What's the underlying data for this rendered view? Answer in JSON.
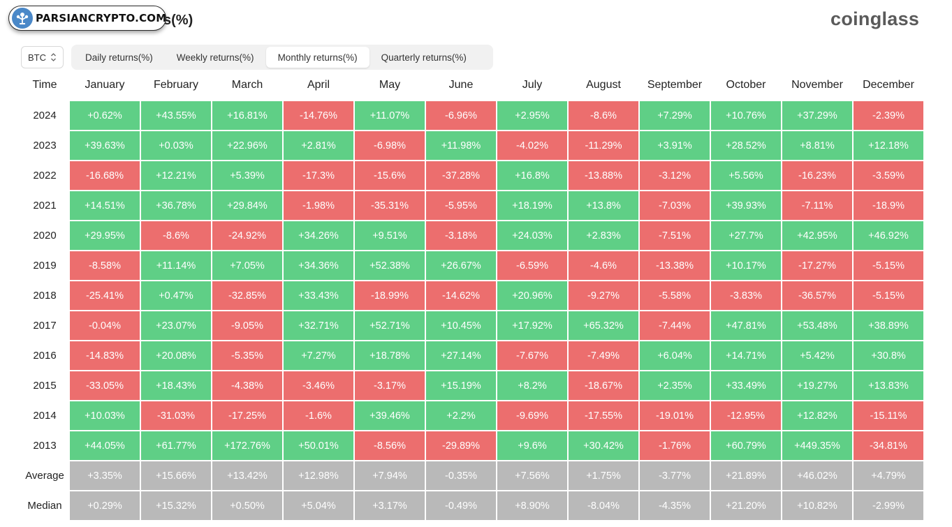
{
  "watermark": {
    "text": "PARSIANCRYPTO.COM",
    "icon": "tree-logo-icon"
  },
  "title_suffix": "s(%)",
  "brand": "coinglass",
  "asset": {
    "selected": "BTC"
  },
  "tabs": [
    {
      "label": "Daily returns(%)",
      "active": false
    },
    {
      "label": "Weekly returns(%)",
      "active": false
    },
    {
      "label": "Monthly returns(%)",
      "active": true
    },
    {
      "label": "Quarterly returns(%)",
      "active": false
    }
  ],
  "colors": {
    "positive": "#5fcf86",
    "negative": "#ec6e6e",
    "summary": "#b9b9b9"
  },
  "chart_data": {
    "type": "table",
    "corner_label": "Time",
    "columns": [
      "January",
      "February",
      "March",
      "April",
      "May",
      "June",
      "July",
      "August",
      "September",
      "October",
      "November",
      "December"
    ],
    "rows": [
      {
        "label": "2024",
        "values": [
          "+0.62%",
          "+43.55%",
          "+16.81%",
          "-14.76%",
          "+11.07%",
          "-6.96%",
          "+2.95%",
          "-8.6%",
          "+7.29%",
          "+10.76%",
          "+37.29%",
          "-2.39%"
        ]
      },
      {
        "label": "2023",
        "values": [
          "+39.63%",
          "+0.03%",
          "+22.96%",
          "+2.81%",
          "-6.98%",
          "+11.98%",
          "-4.02%",
          "-11.29%",
          "+3.91%",
          "+28.52%",
          "+8.81%",
          "+12.18%"
        ]
      },
      {
        "label": "2022",
        "values": [
          "-16.68%",
          "+12.21%",
          "+5.39%",
          "-17.3%",
          "-15.6%",
          "-37.28%",
          "+16.8%",
          "-13.88%",
          "-3.12%",
          "+5.56%",
          "-16.23%",
          "-3.59%"
        ]
      },
      {
        "label": "2021",
        "values": [
          "+14.51%",
          "+36.78%",
          "+29.84%",
          "-1.98%",
          "-35.31%",
          "-5.95%",
          "+18.19%",
          "+13.8%",
          "-7.03%",
          "+39.93%",
          "-7.11%",
          "-18.9%"
        ]
      },
      {
        "label": "2020",
        "values": [
          "+29.95%",
          "-8.6%",
          "-24.92%",
          "+34.26%",
          "+9.51%",
          "-3.18%",
          "+24.03%",
          "+2.83%",
          "-7.51%",
          "+27.7%",
          "+42.95%",
          "+46.92%"
        ]
      },
      {
        "label": "2019",
        "values": [
          "-8.58%",
          "+11.14%",
          "+7.05%",
          "+34.36%",
          "+52.38%",
          "+26.67%",
          "-6.59%",
          "-4.6%",
          "-13.38%",
          "+10.17%",
          "-17.27%",
          "-5.15%"
        ]
      },
      {
        "label": "2018",
        "values": [
          "-25.41%",
          "+0.47%",
          "-32.85%",
          "+33.43%",
          "-18.99%",
          "-14.62%",
          "+20.96%",
          "-9.27%",
          "-5.58%",
          "-3.83%",
          "-36.57%",
          "-5.15%"
        ]
      },
      {
        "label": "2017",
        "values": [
          "-0.04%",
          "+23.07%",
          "-9.05%",
          "+32.71%",
          "+52.71%",
          "+10.45%",
          "+17.92%",
          "+65.32%",
          "-7.44%",
          "+47.81%",
          "+53.48%",
          "+38.89%"
        ]
      },
      {
        "label": "2016",
        "values": [
          "-14.83%",
          "+20.08%",
          "-5.35%",
          "+7.27%",
          "+18.78%",
          "+27.14%",
          "-7.67%",
          "-7.49%",
          "+6.04%",
          "+14.71%",
          "+5.42%",
          "+30.8%"
        ]
      },
      {
        "label": "2015",
        "values": [
          "-33.05%",
          "+18.43%",
          "-4.38%",
          "-3.46%",
          "-3.17%",
          "+15.19%",
          "+8.2%",
          "-18.67%",
          "+2.35%",
          "+33.49%",
          "+19.27%",
          "+13.83%"
        ]
      },
      {
        "label": "2014",
        "values": [
          "+10.03%",
          "-31.03%",
          "-17.25%",
          "-1.6%",
          "+39.46%",
          "+2.2%",
          "-9.69%",
          "-17.55%",
          "-19.01%",
          "-12.95%",
          "+12.82%",
          "-15.11%"
        ]
      },
      {
        "label": "2013",
        "values": [
          "+44.05%",
          "+61.77%",
          "+172.76%",
          "+50.01%",
          "-8.56%",
          "-29.89%",
          "+9.6%",
          "+30.42%",
          "-1.76%",
          "+60.79%",
          "+449.35%",
          "-34.81%"
        ]
      }
    ],
    "summary_rows": [
      {
        "label": "Average",
        "values": [
          "+3.35%",
          "+15.66%",
          "+13.42%",
          "+12.98%",
          "+7.94%",
          "-0.35%",
          "+7.56%",
          "+1.75%",
          "-3.77%",
          "+21.89%",
          "+46.02%",
          "+4.79%"
        ]
      },
      {
        "label": "Median",
        "values": [
          "+0.29%",
          "+15.32%",
          "+0.50%",
          "+5.04%",
          "+3.17%",
          "-0.49%",
          "+8.90%",
          "-8.04%",
          "-4.35%",
          "+21.20%",
          "+10.82%",
          "-2.99%"
        ]
      }
    ]
  }
}
